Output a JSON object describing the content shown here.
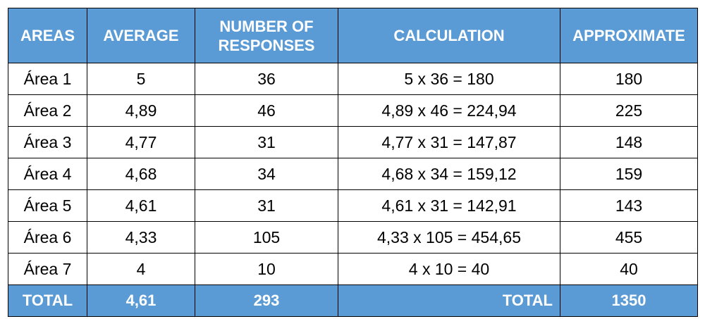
{
  "table": {
    "headers": [
      "AREAS",
      "AVERAGE",
      "NUMBER OF RESPONSES",
      "CALCULATION",
      "APPROXIMATE"
    ],
    "rows": [
      [
        "Área 1",
        "5",
        "36",
        "5 x 36 = 180",
        "180"
      ],
      [
        "Área 2",
        "4,89",
        "46",
        "4,89 x 46 = 224,94",
        "225"
      ],
      [
        "Área 3",
        "4,77",
        "31",
        "4,77 x 31 = 147,87",
        "148"
      ],
      [
        "Área 4",
        "4,68",
        "34",
        "4,68 x 34 = 159,12",
        "159"
      ],
      [
        "Área 5",
        "4,61",
        "31",
        "4,61 x 31 = 142,91",
        "143"
      ],
      [
        "Área 6",
        "4,33",
        "105",
        "4,33 x 105 = 454,65",
        "455"
      ],
      [
        "Área 7",
        "4",
        "10",
        "4 x 10 = 40",
        "40"
      ]
    ],
    "total": {
      "label": "TOTAL",
      "average": "4,61",
      "responses": "293",
      "calc_label": "TOTAL",
      "approximate": "1350"
    }
  },
  "colors": {
    "header_bg": "#5b9bd5",
    "header_text": "#ffffff"
  }
}
